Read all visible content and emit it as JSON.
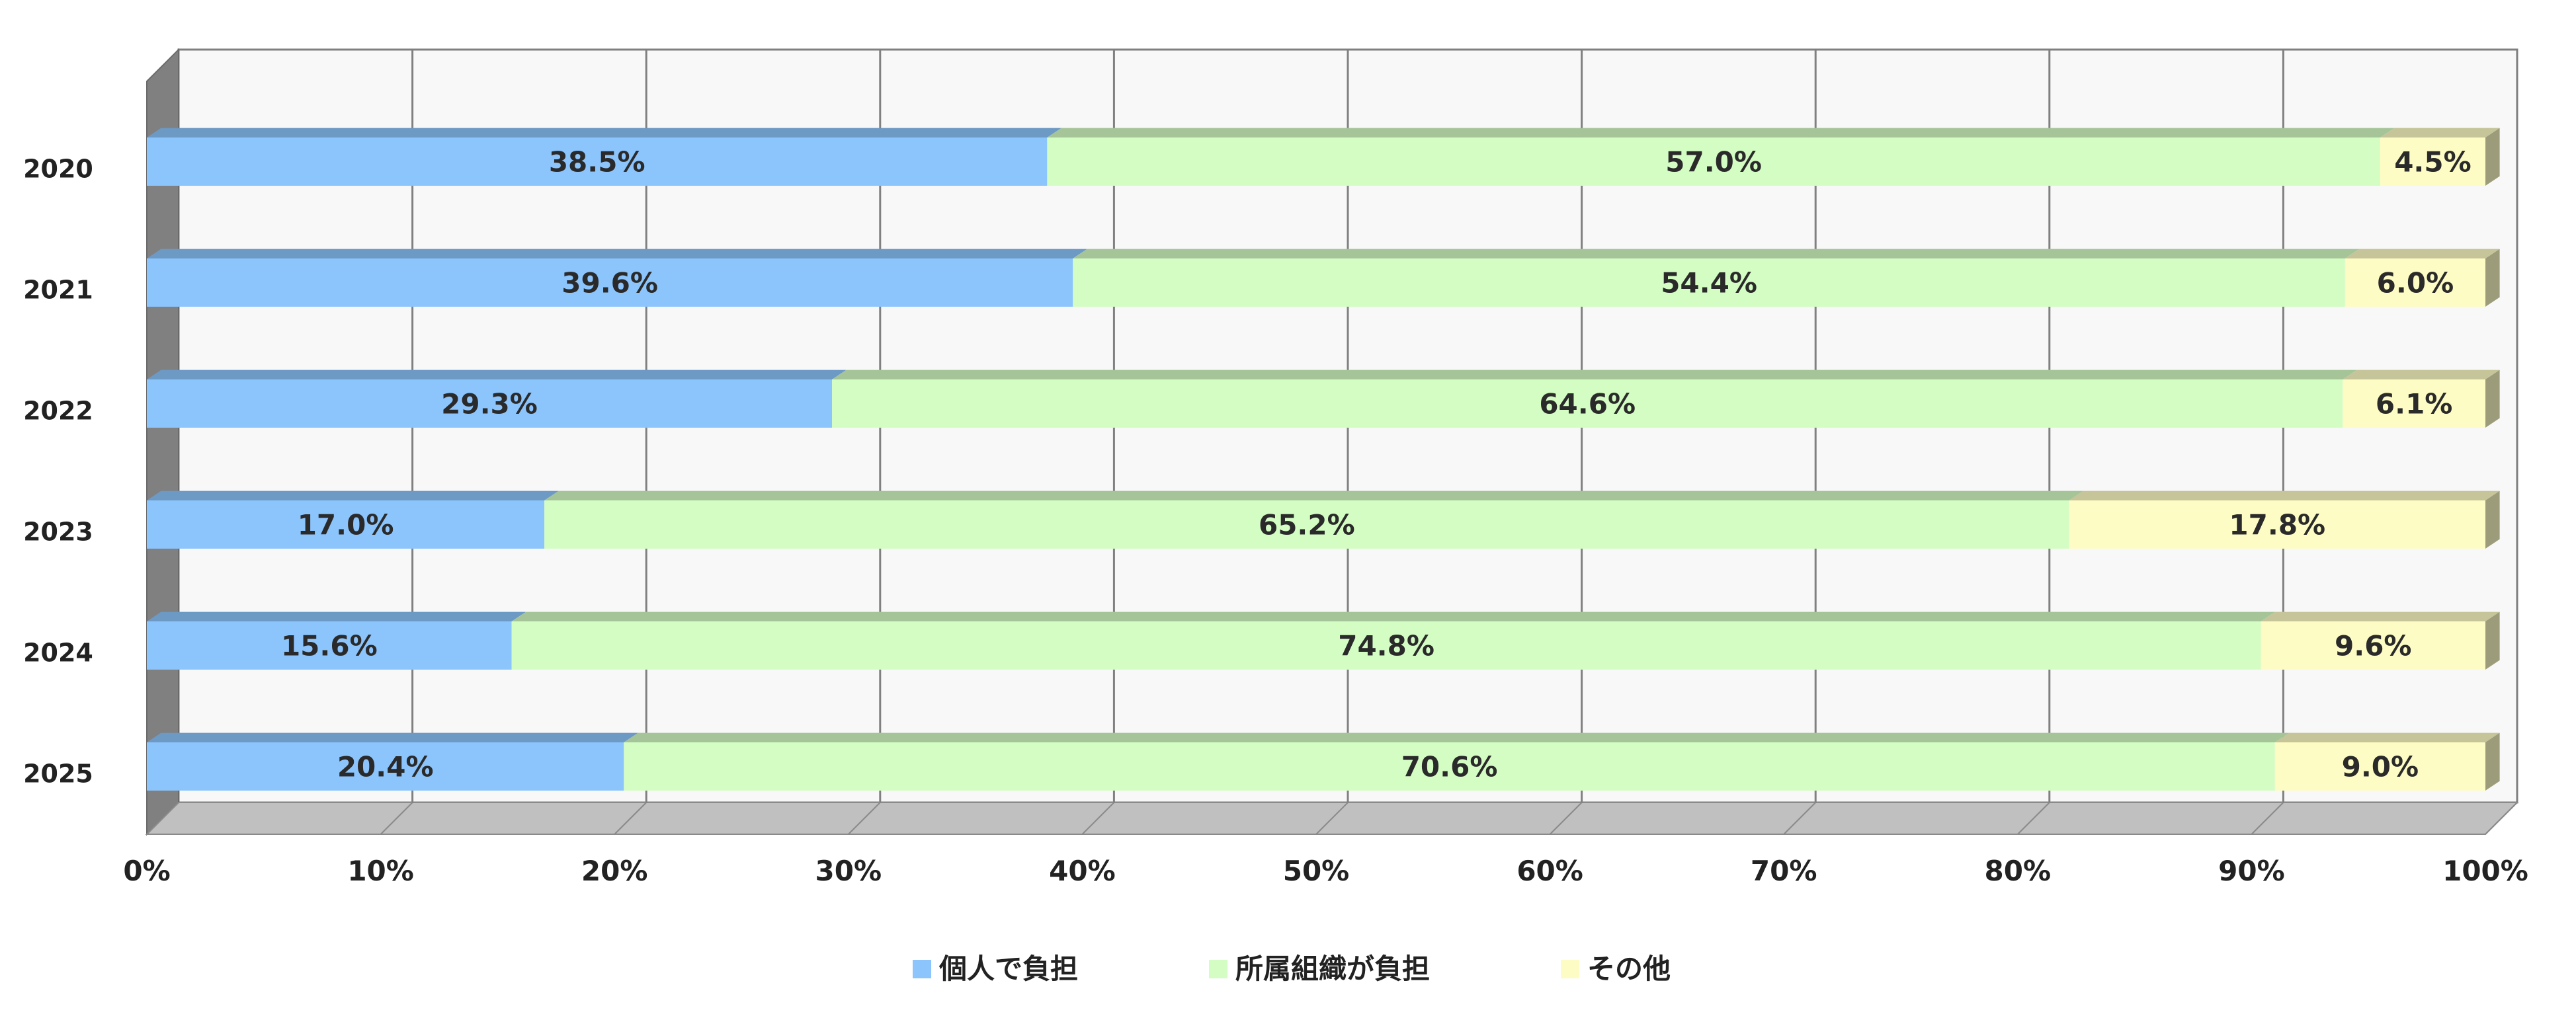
{
  "chart_data": {
    "type": "bar",
    "orientation": "horizontal",
    "stacked": "percent",
    "three_d": true,
    "categories": [
      "2020",
      "2021",
      "2022",
      "2023",
      "2024",
      "2025"
    ],
    "series": [
      {
        "name": "個人で負担",
        "values": [
          38.5,
          39.6,
          29.3,
          17.0,
          15.6,
          20.4
        ],
        "color": "#8CC4FC"
      },
      {
        "name": "所属組織が負担",
        "values": [
          57.0,
          54.4,
          64.6,
          65.2,
          74.8,
          70.6
        ],
        "color": "#D4FDC4"
      },
      {
        "name": "その他",
        "values": [
          4.5,
          6.0,
          6.1,
          17.8,
          9.6,
          9.0
        ],
        "color": "#FDFCC4"
      }
    ],
    "data_labels": [
      [
        "38.5%",
        "39.6%",
        "29.3%",
        "17.0%",
        "15.6%",
        "20.4%"
      ],
      [
        "57.0%",
        "54.4%",
        "64.6%",
        "65.2%",
        "74.8%",
        "70.6%"
      ],
      [
        "4.5%",
        "6.0%",
        "6.1%",
        "17.8%",
        "9.6%",
        "9.0%"
      ]
    ],
    "x_ticks": [
      "0%",
      "10%",
      "20%",
      "30%",
      "40%",
      "50%",
      "60%",
      "70%",
      "80%",
      "90%",
      "100%"
    ],
    "xlim": [
      0,
      100
    ],
    "grid": true,
    "legend_position": "bottom",
    "title": "",
    "xlabel": "",
    "ylabel": ""
  }
}
